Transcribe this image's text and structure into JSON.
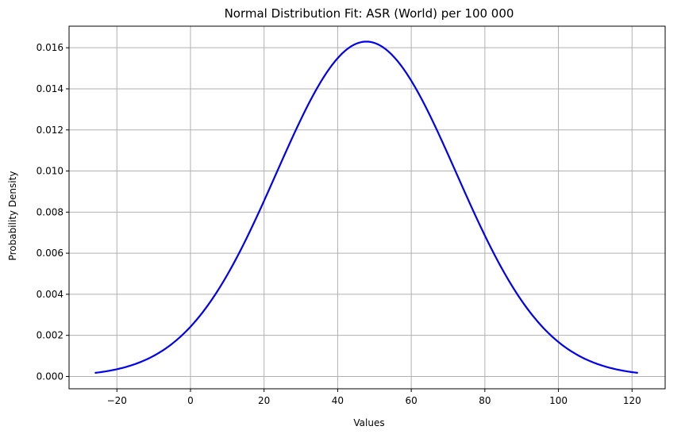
{
  "chart_data": {
    "type": "line",
    "title": "Normal Distribution Fit: ASR (World) per 100 000",
    "xlabel": "Values",
    "ylabel": "Probability Density",
    "xlim": [
      -33,
      129
    ],
    "ylim": [
      -0.0006,
      0.01705
    ],
    "x_ticks": [
      -20,
      0,
      20,
      40,
      60,
      80,
      100,
      120
    ],
    "x_tick_labels": [
      "−20",
      "0",
      "20",
      "40",
      "60",
      "80",
      "100",
      "120"
    ],
    "y_ticks": [
      0.0,
      0.002,
      0.004,
      0.006,
      0.008,
      0.01,
      0.012,
      0.014,
      0.016
    ],
    "y_tick_labels": [
      "0.000",
      "0.002",
      "0.004",
      "0.006",
      "0.008",
      "0.010",
      "0.012",
      "0.014",
      "0.016"
    ],
    "grid": true,
    "legend": "none",
    "series": [
      {
        "color": "#0000ee",
        "x": [
          -25.8,
          -20,
          -15,
          -10,
          -5,
          0,
          5,
          10,
          15,
          20,
          25,
          30,
          35,
          40,
          45,
          47.8,
          50,
          55,
          60,
          65,
          70,
          75,
          80,
          85,
          90,
          95,
          100,
          105,
          110,
          115,
          121.4
        ],
        "y": [
          0.00019,
          0.00035,
          0.00059,
          0.00097,
          0.00152,
          0.0023,
          0.00333,
          0.00464,
          0.00619,
          0.00792,
          0.00973,
          0.01147,
          0.01298,
          0.0141,
          0.01473,
          0.0163,
          0.01476,
          0.01415,
          0.01306,
          0.01157,
          0.00983,
          0.00802,
          0.00629,
          0.00472,
          0.00339,
          0.00235,
          0.00156,
          0.00099,
          0.00061,
          0.00036,
          0.00019
        ]
      }
    ]
  }
}
